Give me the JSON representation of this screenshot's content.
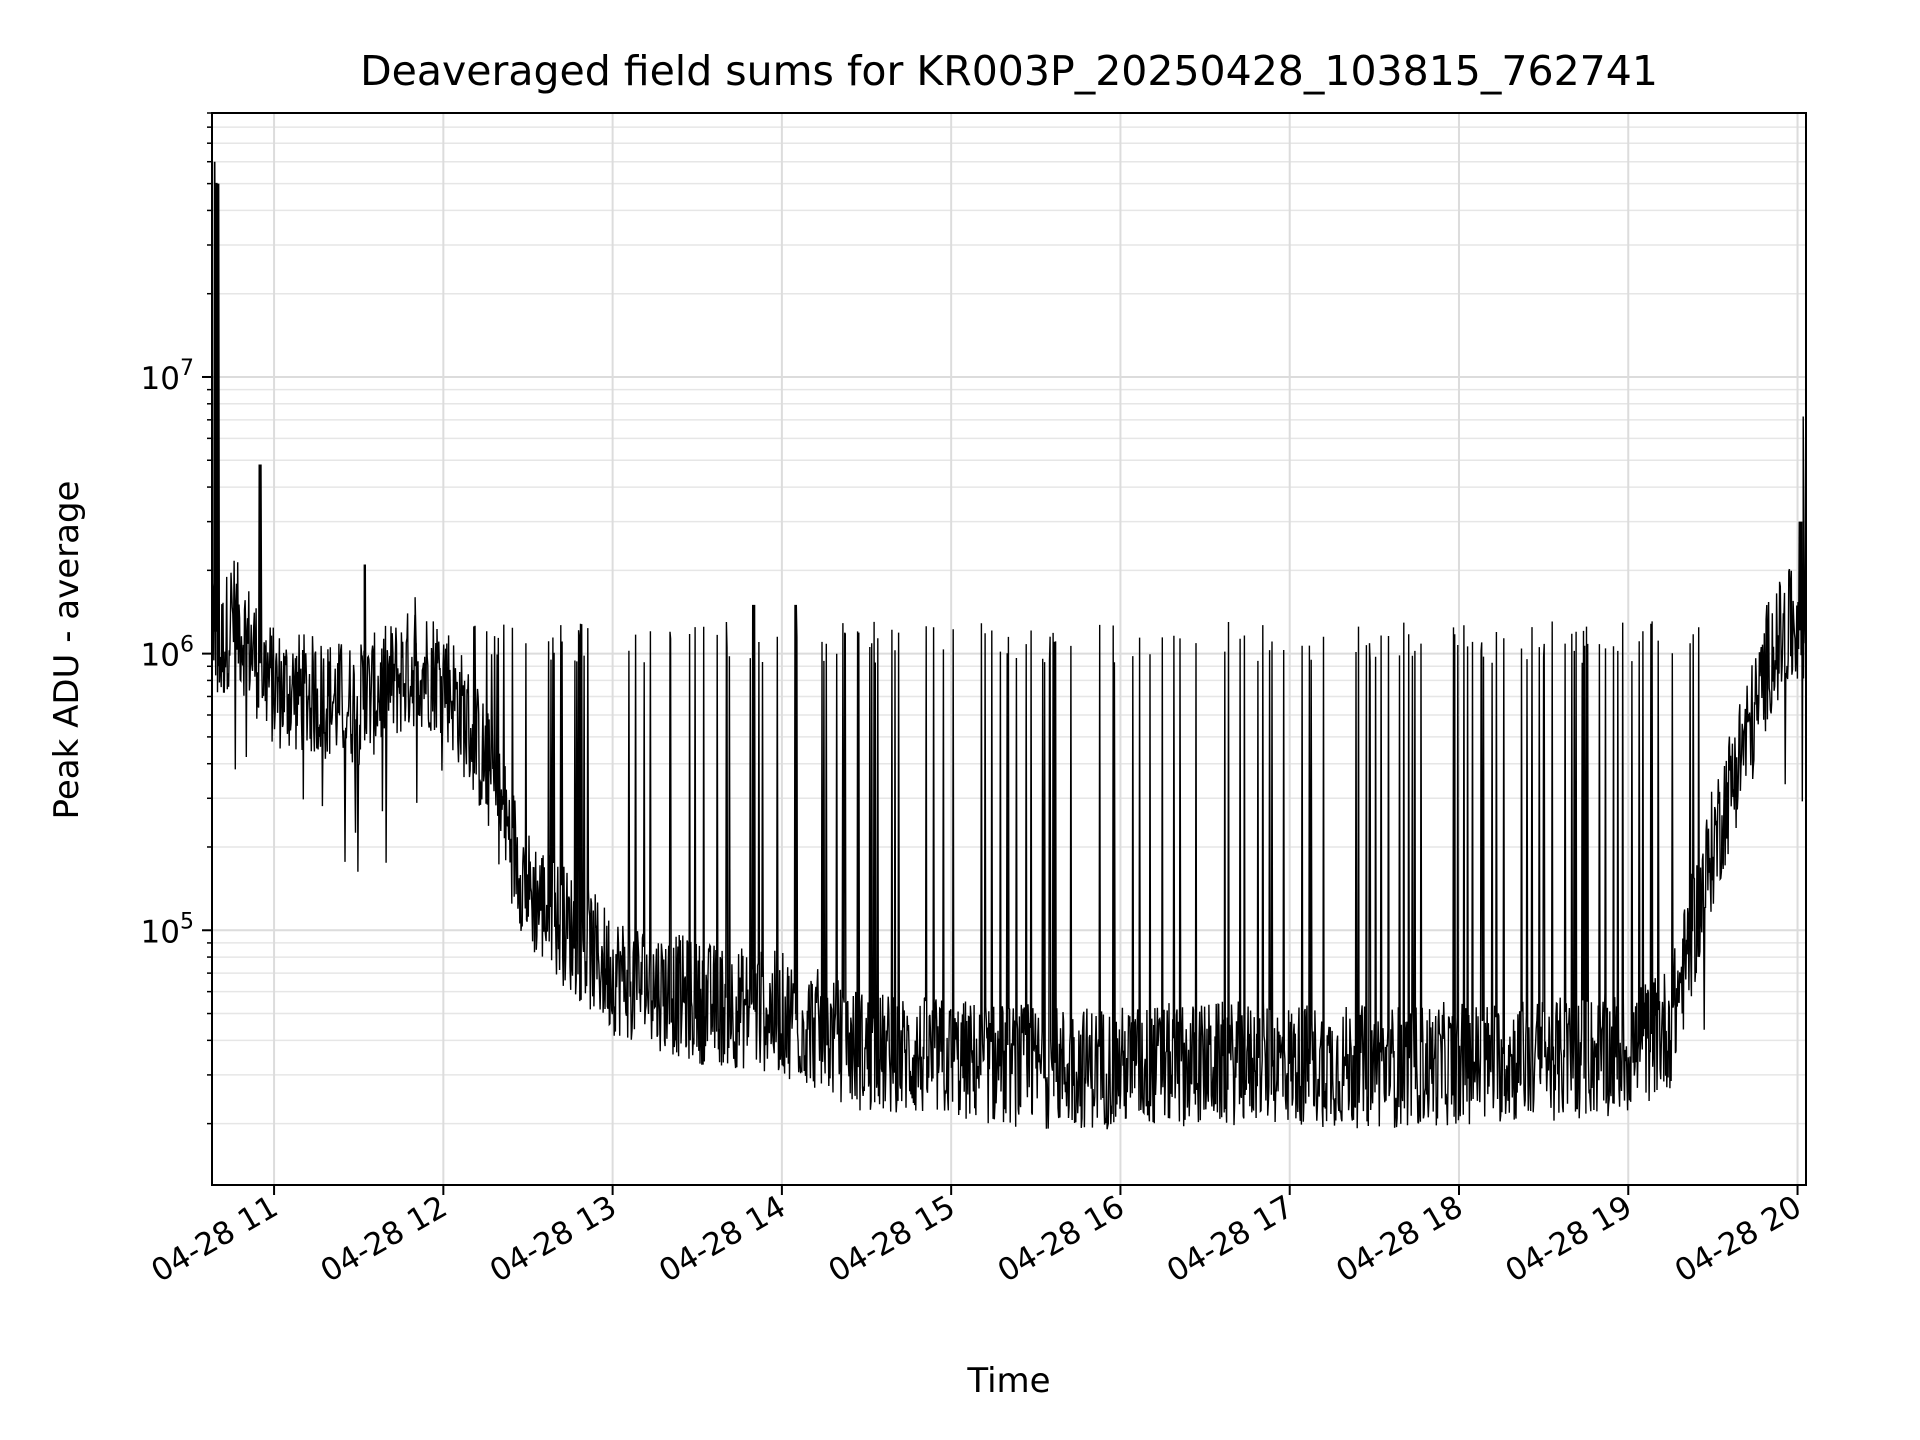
{
  "chart_data": {
    "type": "line",
    "title": "Deaveraged field sums for KR003P_20250428_103815_762741",
    "xlabel": "Time",
    "ylabel": "Peak ADU - average",
    "yscale": "log",
    "grid": true,
    "grid_minor": true,
    "xlim": [
      "2025-04-28 10:38",
      "2025-04-28 20:03"
    ],
    "ylim": [
      12000,
      90000000
    ],
    "x_tick_labels": [
      "04-28 11",
      "04-28 12",
      "04-28 13",
      "04-28 14",
      "04-28 15",
      "04-28 16",
      "04-28 17",
      "04-28 18",
      "04-28 19",
      "04-28 20"
    ],
    "y_tick_labels": [
      {
        "base": "10",
        "exp": "5",
        "value": 100000
      },
      {
        "base": "10",
        "exp": "6",
        "value": 1000000
      },
      {
        "base": "10",
        "exp": "7",
        "value": 10000000
      }
    ],
    "line_color": "#000000",
    "series": [
      {
        "baseline": {
          "x": [
            "10:38",
            "10:40",
            "10:45",
            "11:00",
            "11:30",
            "11:50",
            "12:00",
            "12:15",
            "12:30",
            "13:00",
            "13:30",
            "14:00",
            "14:30",
            "15:00",
            "15:30",
            "16:00",
            "16:30",
            "17:00",
            "17:30",
            "18:00",
            "18:30",
            "19:00",
            "19:15",
            "19:30",
            "19:40",
            "19:45",
            "19:50",
            "20:00",
            "20:03"
          ],
          "y": [
            1600000,
            900000,
            1400000,
            750000,
            650000,
            900000,
            850000,
            400000,
            140000,
            70000,
            55000,
            50000,
            36000,
            34000,
            32000,
            32000,
            33000,
            33000,
            32000,
            33000,
            34000,
            36000,
            45000,
            200000,
            450000,
            600000,
            1000000,
            1300000,
            1200000
          ]
        },
        "spikes": [
          {
            "x": "10:39",
            "y": 60000000
          },
          {
            "x": "10:40",
            "y": 50000000
          },
          {
            "x": "10:55",
            "y": 4800000
          },
          {
            "x": "11:32",
            "y": 2100000
          },
          {
            "x": "11:50",
            "y": 1600000
          },
          {
            "x": "13:50",
            "y": 1500000
          },
          {
            "x": "14:05",
            "y": 1500000
          },
          {
            "x": "20:01",
            "y": 3000000
          },
          {
            "x": "20:02",
            "y": 7200000
          }
        ],
        "spike_level": 1100000
      }
    ]
  }
}
